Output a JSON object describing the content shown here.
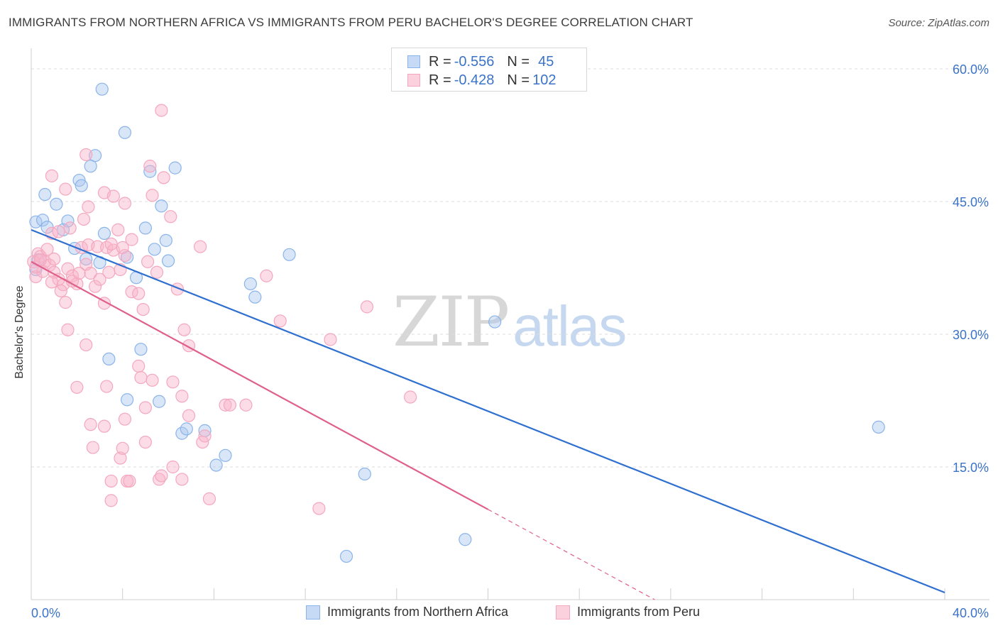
{
  "title": "IMMIGRANTS FROM NORTHERN AFRICA VS IMMIGRANTS FROM PERU BACHELOR'S DEGREE CORRELATION CHART",
  "source": "Source: ZipAtlas.com",
  "watermark": {
    "zip": "ZIP",
    "atlas": "atlas"
  },
  "legend": {
    "series": [
      {
        "r_label": "R =",
        "r_value": "-0.556",
        "n_label": "N =",
        "n_value": "45"
      },
      {
        "r_label": "R =",
        "r_value": "-0.428",
        "n_label": "N =",
        "n_value": "102"
      }
    ]
  },
  "chart_data": {
    "type": "scatter",
    "title": "IMMIGRANTS FROM NORTHERN AFRICA VS IMMIGRANTS FROM PERU BACHELOR'S DEGREE CORRELATION CHART",
    "xlabel": "",
    "ylabel": "Bachelor's Degree",
    "xlim": [
      0,
      40
    ],
    "ylim": [
      0,
      60
    ],
    "x_ticks": [
      "0.0%",
      "40.0%"
    ],
    "y_ticks": [
      "15.0%",
      "30.0%",
      "45.0%",
      "60.0%"
    ],
    "y_tick_values": [
      15,
      30,
      45,
      60
    ],
    "grid": "horizontal dashed",
    "legend_position": "top-center",
    "series": [
      {
        "name": "Immigrants from Northern Africa",
        "color": "#8ab4ea",
        "trend_color": "#2f6fd0",
        "trend": {
          "x": [
            0,
            40
          ],
          "y": [
            41.8,
            0.8
          ]
        },
        "points": [
          [
            0.2,
            42.7
          ],
          [
            0.5,
            42.9
          ],
          [
            0.7,
            42.1
          ],
          [
            0.6,
            45.8
          ],
          [
            1.1,
            44.7
          ],
          [
            1.6,
            42.8
          ],
          [
            1.4,
            41.8
          ],
          [
            2.1,
            47.4
          ],
          [
            2.2,
            46.8
          ],
          [
            2.6,
            49.0
          ],
          [
            2.8,
            50.2
          ],
          [
            3.1,
            57.7
          ],
          [
            4.1,
            52.8
          ],
          [
            5.2,
            48.4
          ],
          [
            6.3,
            48.8
          ],
          [
            5.7,
            44.5
          ],
          [
            3.2,
            41.4
          ],
          [
            5.0,
            42.0
          ],
          [
            5.9,
            40.6
          ],
          [
            5.4,
            39.6
          ],
          [
            4.2,
            38.7
          ],
          [
            3.0,
            38.1
          ],
          [
            2.4,
            38.5
          ],
          [
            1.9,
            39.7
          ],
          [
            6.0,
            38.3
          ],
          [
            4.6,
            36.4
          ],
          [
            9.6,
            35.7
          ],
          [
            9.8,
            34.2
          ],
          [
            11.3,
            39.0
          ],
          [
            3.4,
            27.2
          ],
          [
            4.8,
            28.3
          ],
          [
            4.2,
            22.6
          ],
          [
            5.6,
            22.4
          ],
          [
            6.6,
            18.8
          ],
          [
            6.8,
            19.3
          ],
          [
            7.6,
            19.1
          ],
          [
            8.1,
            15.2
          ],
          [
            8.5,
            16.3
          ],
          [
            14.6,
            14.2
          ],
          [
            19.0,
            6.8
          ],
          [
            13.8,
            4.9
          ],
          [
            20.3,
            31.4
          ],
          [
            37.1,
            19.5
          ],
          [
            0.3,
            38.4
          ],
          [
            0.2,
            37.3
          ]
        ]
      },
      {
        "name": "Immigrants from Peru",
        "color": "#f4a7be",
        "trend_color": "#e0608c",
        "trend": {
          "x": [
            0,
            20
          ],
          "y": [
            38.2,
            10.2
          ]
        },
        "trend_extension": {
          "x": [
            20,
            27.3
          ],
          "y": [
            10.2,
            0.0
          ]
        },
        "points": [
          [
            0.3,
            39.1
          ],
          [
            0.4,
            38.8
          ],
          [
            0.6,
            38.2
          ],
          [
            0.7,
            39.6
          ],
          [
            0.8,
            37.8
          ],
          [
            1.0,
            37.0
          ],
          [
            1.2,
            36.2
          ],
          [
            1.4,
            35.6
          ],
          [
            0.2,
            36.5
          ],
          [
            0.5,
            37.1
          ],
          [
            0.9,
            35.9
          ],
          [
            1.6,
            37.4
          ],
          [
            1.8,
            36.6
          ],
          [
            2.0,
            35.7
          ],
          [
            1.3,
            34.9
          ],
          [
            1.5,
            33.6
          ],
          [
            2.4,
            37.9
          ],
          [
            2.6,
            36.9
          ],
          [
            2.8,
            35.4
          ],
          [
            3.0,
            36.2
          ],
          [
            3.2,
            33.5
          ],
          [
            3.4,
            37.0
          ],
          [
            2.2,
            39.8
          ],
          [
            2.5,
            40.1
          ],
          [
            2.9,
            39.9
          ],
          [
            3.3,
            39.8
          ],
          [
            3.6,
            39.5
          ],
          [
            3.9,
            37.3
          ],
          [
            4.1,
            38.9
          ],
          [
            4.4,
            34.8
          ],
          [
            4.7,
            34.6
          ],
          [
            4.9,
            32.8
          ],
          [
            5.1,
            38.2
          ],
          [
            5.5,
            37.0
          ],
          [
            0.9,
            41.4
          ],
          [
            1.2,
            41.6
          ],
          [
            1.7,
            42.0
          ],
          [
            2.3,
            43.0
          ],
          [
            2.5,
            44.4
          ],
          [
            3.2,
            46.0
          ],
          [
            3.6,
            45.6
          ],
          [
            4.1,
            44.8
          ],
          [
            3.8,
            41.8
          ],
          [
            4.4,
            40.7
          ],
          [
            5.3,
            45.7
          ],
          [
            5.2,
            49.0
          ],
          [
            5.8,
            47.7
          ],
          [
            6.1,
            43.3
          ],
          [
            7.4,
            39.9
          ],
          [
            6.4,
            35.1
          ],
          [
            2.4,
            50.3
          ],
          [
            5.7,
            55.3
          ],
          [
            0.9,
            47.9
          ],
          [
            1.5,
            46.4
          ],
          [
            1.6,
            30.5
          ],
          [
            2.4,
            28.8
          ],
          [
            2.0,
            24.0
          ],
          [
            3.3,
            24.1
          ],
          [
            4.1,
            20.4
          ],
          [
            4.7,
            26.4
          ],
          [
            4.8,
            25.1
          ],
          [
            5.3,
            24.8
          ],
          [
            6.2,
            24.6
          ],
          [
            5.0,
            21.7
          ],
          [
            6.6,
            23.0
          ],
          [
            6.9,
            20.8
          ],
          [
            6.7,
            30.5
          ],
          [
            6.9,
            28.7
          ],
          [
            2.6,
            19.8
          ],
          [
            3.2,
            19.6
          ],
          [
            2.7,
            17.2
          ],
          [
            3.9,
            16.0
          ],
          [
            4.0,
            17.1
          ],
          [
            5.0,
            17.8
          ],
          [
            3.5,
            13.4
          ],
          [
            4.2,
            13.4
          ],
          [
            4.3,
            13.4
          ],
          [
            5.6,
            13.6
          ],
          [
            5.7,
            14.0
          ],
          [
            6.2,
            15.0
          ],
          [
            6.6,
            13.6
          ],
          [
            7.5,
            17.8
          ],
          [
            7.6,
            18.5
          ],
          [
            8.5,
            22.0
          ],
          [
            8.7,
            22.0
          ],
          [
            9.4,
            22.0
          ],
          [
            7.8,
            11.4
          ],
          [
            3.5,
            11.2
          ],
          [
            12.6,
            10.3
          ],
          [
            10.3,
            36.6
          ],
          [
            10.9,
            31.5
          ],
          [
            13.1,
            29.4
          ],
          [
            14.7,
            33.1
          ],
          [
            16.6,
            22.9
          ],
          [
            0.1,
            38.2
          ],
          [
            0.2,
            37.6
          ],
          [
            0.4,
            38.4
          ],
          [
            1.0,
            38.5
          ],
          [
            1.8,
            36.0
          ],
          [
            2.1,
            36.9
          ],
          [
            3.5,
            40.2
          ],
          [
            4.0,
            39.8
          ]
        ]
      }
    ]
  }
}
